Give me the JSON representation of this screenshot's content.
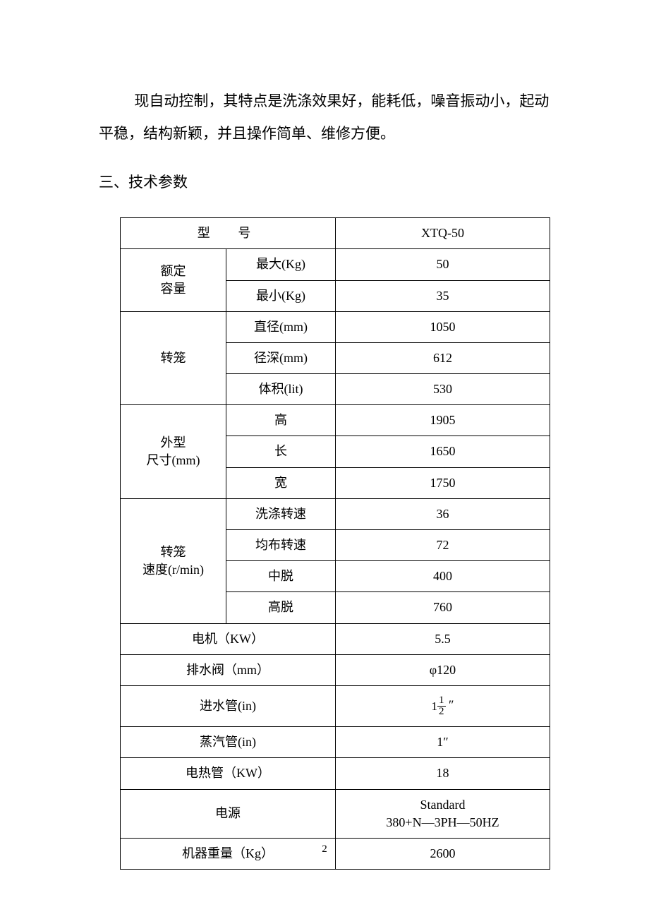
{
  "paragraph": "现自动控制，其特点是洗涤效果好，能耗低，噪音振动小，起动平稳，结构新颖，并且操作简单、维修方便。",
  "section_title": "三、技术参数",
  "table": {
    "header": {
      "model_label": "型　号",
      "model_value": "XTQ-50"
    },
    "capacity": {
      "label": "额定容量",
      "label_line1": "额定",
      "label_line2": "容量",
      "max_label": "最大(Kg)",
      "max_value": "50",
      "min_label": "最小(Kg)",
      "min_value": "35"
    },
    "drum": {
      "label": "转笼",
      "diameter_label": "直径(mm)",
      "diameter_value": "1050",
      "depth_label": "径深(mm)",
      "depth_value": "612",
      "volume_label": "体积(lit)",
      "volume_value": "530"
    },
    "dimensions": {
      "label_line1": "外型",
      "label_line2": "尺寸(mm)",
      "height_label": "高",
      "height_value": "1905",
      "length_label": "长",
      "length_value": "1650",
      "width_label": "宽",
      "width_value": "1750"
    },
    "speed": {
      "label_line1": "转笼",
      "label_line2": "速度(r/min)",
      "wash_label": "洗涤转速",
      "wash_value": "36",
      "dist_label": "均布转速",
      "dist_value": "72",
      "mid_label": "中脱",
      "mid_value": "400",
      "high_label": "高脱",
      "high_value": "760"
    },
    "motor": {
      "label": "电机（KW）",
      "value": "5.5"
    },
    "drain": {
      "label": "排水阀（mm）",
      "value": "φ120"
    },
    "inlet": {
      "label": "进水管(in)",
      "whole": "1",
      "num": "1",
      "den": "2",
      "suffix": "″"
    },
    "steam": {
      "label": "蒸汽管(in)",
      "value": "1″"
    },
    "heater": {
      "label": "电热管（KW）",
      "value": "18"
    },
    "power": {
      "label": "电源",
      "value_line1": "Standard",
      "value_line2": "380+N—3PH—50HZ"
    },
    "weight": {
      "label": "机器重量（Kg）",
      "value": "2600"
    }
  },
  "page_number": "2"
}
